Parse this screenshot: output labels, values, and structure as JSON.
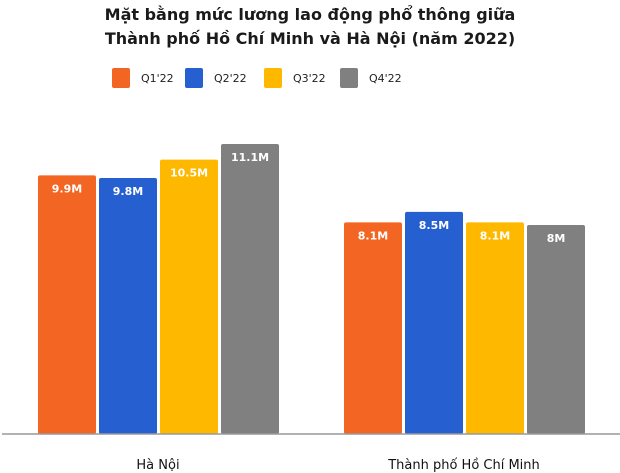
{
  "chart_data": {
    "type": "bar",
    "title_lines": [
      "Mặt bằng mức lương lao động phổ thông giữa",
      "Thành phố Hồ Chí Minh và Hà Nội (năm 2022)"
    ],
    "categories": [
      "Hà Nội",
      "Thành phố Hồ Chí Minh"
    ],
    "series": [
      {
        "name": "Q1'22",
        "color": "#F26522",
        "values": [
          9.9,
          8.1
        ],
        "labels": [
          "9.9M",
          "8.1M"
        ]
      },
      {
        "name": "Q2'22",
        "color": "#2660D0",
        "values": [
          9.8,
          8.5
        ],
        "labels": [
          "9.8M",
          "8.5M"
        ]
      },
      {
        "name": "Q3'22",
        "color": "#FFB800",
        "values": [
          10.5,
          8.1
        ],
        "labels": [
          "10.5M",
          "8.1M"
        ]
      },
      {
        "name": "Q4'22",
        "color": "#808080",
        "values": [
          11.1,
          8.0
        ],
        "labels": [
          "11.1M",
          "8M"
        ]
      }
    ],
    "xlabel": "",
    "ylabel": "",
    "ylim": [
      0,
      11.1
    ],
    "grid": false,
    "legend": "top"
  }
}
